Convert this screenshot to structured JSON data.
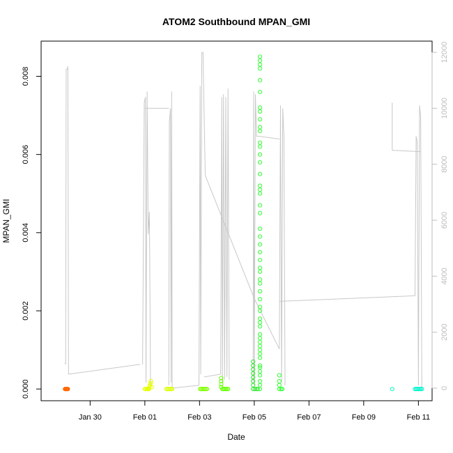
{
  "chart_data": {
    "type": "scatter",
    "title": "ATOM2 Southbound MPAN_GMI",
    "xlabel": "Date",
    "ylabel": "MPAN_GMI",
    "xlim": [
      "2022-01-28T05:00",
      "2022-02-11T12:00"
    ],
    "ylim": [
      -0.0003,
      0.0089
    ],
    "y2lim": [
      -450,
      12400
    ],
    "x_ticks": [
      {
        "date": "2022-01-30",
        "label": "Jan 30"
      },
      {
        "date": "2022-02-01",
        "label": "Feb 01"
      },
      {
        "date": "2022-02-03",
        "label": "Feb 03"
      },
      {
        "date": "2022-02-05",
        "label": "Feb 05"
      },
      {
        "date": "2022-02-07",
        "label": "Feb 07"
      },
      {
        "date": "2022-02-09",
        "label": "Feb 09"
      },
      {
        "date": "2022-02-11",
        "label": "Feb 11"
      }
    ],
    "y_ticks": [
      0,
      0.002,
      0.004,
      0.006,
      0.008
    ],
    "y_tick_labels": [
      "0.000",
      "0.002",
      "0.004",
      "0.006",
      "0.008"
    ],
    "y2_ticks": [
      0,
      2000,
      4000,
      6000,
      8000,
      10000,
      12000
    ],
    "y2_tick_labels": [
      "0",
      "2000",
      "4000",
      "6000",
      "8000",
      "10000",
      "12000"
    ],
    "line_color": "#c8c8c8",
    "y2_tick_color": "#bdbdbd",
    "point_series": [
      {
        "color": "#ff6600",
        "points": [
          [
            "2022-01-29T02:00",
            0
          ],
          [
            "2022-01-29T02:30",
            0
          ],
          [
            "2022-01-29T03:00",
            0
          ],
          [
            "2022-01-29T03:30",
            0
          ],
          [
            "2022-01-29T04:00",
            0
          ],
          [
            "2022-01-29T04:30",
            0
          ]
        ]
      },
      {
        "color": "#e6ff00",
        "points": [
          [
            "2022-02-01T00:00",
            0
          ],
          [
            "2022-02-01T01:00",
            0
          ],
          [
            "2022-02-01T02:00",
            0
          ],
          [
            "2022-02-01T02:30",
            0
          ],
          [
            "2022-02-01T03:00",
            0
          ],
          [
            "2022-02-01T03:30",
            0
          ],
          [
            "2022-02-01T04:00",
            5e-05
          ],
          [
            "2022-02-01T04:30",
            0.0001
          ],
          [
            "2022-02-01T05:00",
            0.00015
          ],
          [
            "2022-02-01T05:30",
            0.0002
          ],
          [
            "2022-02-01T06:00",
            5e-05
          ]
        ]
      },
      {
        "color": "#d9ff00",
        "points": [
          [
            "2022-02-01T19:00",
            0
          ],
          [
            "2022-02-01T20:00",
            0
          ],
          [
            "2022-02-01T21:00",
            0
          ],
          [
            "2022-02-01T22:00",
            0
          ],
          [
            "2022-02-01T23:00",
            0
          ],
          [
            "2022-02-02T00:00",
            0
          ]
        ]
      },
      {
        "color": "#80ff00",
        "points": [
          [
            "2022-02-03T00:30",
            0
          ],
          [
            "2022-02-03T01:30",
            0
          ],
          [
            "2022-02-03T02:30",
            0
          ],
          [
            "2022-02-03T03:30",
            0
          ],
          [
            "2022-02-03T04:30",
            0
          ],
          [
            "2022-02-03T05:30",
            0
          ],
          [
            "2022-02-03T06:30",
            0
          ]
        ]
      },
      {
        "color": "#66ff00",
        "points": [
          [
            "2022-02-03T19:00",
            0.00028
          ],
          [
            "2022-02-03T19:00",
            0.0002
          ],
          [
            "2022-02-03T19:00",
            0.00012
          ],
          [
            "2022-02-03T19:00",
            5e-05
          ],
          [
            "2022-02-03T20:00",
            0
          ],
          [
            "2022-02-03T21:00",
            0
          ],
          [
            "2022-02-03T22:00",
            0
          ],
          [
            "2022-02-03T23:00",
            0
          ],
          [
            "2022-02-04T00:00",
            0
          ],
          [
            "2022-02-04T01:00",
            0
          ]
        ]
      },
      {
        "color": "#2ce62c",
        "points": [
          [
            "2022-02-04T23:00",
            0
          ],
          [
            "2022-02-04T23:00",
            0.0001
          ],
          [
            "2022-02-04T23:00",
            0.0002
          ],
          [
            "2022-02-04T23:00",
            0.0003
          ],
          [
            "2022-02-04T23:00",
            0.0004
          ],
          [
            "2022-02-04T23:00",
            0.0005
          ],
          [
            "2022-02-04T23:00",
            0.0006
          ],
          [
            "2022-02-04T23:00",
            0.0007
          ],
          [
            "2022-02-05T00:30",
            0
          ],
          [
            "2022-02-05T02:00",
            0
          ],
          [
            "2022-02-05T03:00",
            0
          ]
        ]
      },
      {
        "color": "#33ff33",
        "points": [
          [
            "2022-02-05T05:00",
            0
          ],
          [
            "2022-02-05T05:00",
            0.0001
          ],
          [
            "2022-02-05T05:00",
            0.0002
          ],
          [
            "2022-02-05T05:00",
            0.00035
          ],
          [
            "2022-02-05T05:00",
            0.00045
          ],
          [
            "2022-02-05T05:00",
            0.00055
          ],
          [
            "2022-02-05T05:00",
            0.0006
          ],
          [
            "2022-02-05T05:00",
            0.0008
          ],
          [
            "2022-02-05T05:00",
            0.0009
          ],
          [
            "2022-02-05T05:00",
            0.001
          ],
          [
            "2022-02-05T05:00",
            0.0011
          ],
          [
            "2022-02-05T05:00",
            0.0012
          ],
          [
            "2022-02-05T05:00",
            0.0013
          ],
          [
            "2022-02-05T05:00",
            0.0014
          ],
          [
            "2022-02-05T05:00",
            0.0016
          ],
          [
            "2022-02-05T05:00",
            0.0017
          ],
          [
            "2022-02-05T05:00",
            0.0018
          ],
          [
            "2022-02-05T05:00",
            0.002
          ],
          [
            "2022-02-05T05:00",
            0.0021
          ],
          [
            "2022-02-05T05:00",
            0.0023
          ],
          [
            "2022-02-05T05:00",
            0.0025
          ],
          [
            "2022-02-05T05:00",
            0.0027
          ],
          [
            "2022-02-05T05:00",
            0.0028
          ],
          [
            "2022-02-05T05:00",
            0.003
          ],
          [
            "2022-02-05T05:00",
            0.0031
          ],
          [
            "2022-02-05T05:00",
            0.0033
          ],
          [
            "2022-02-05T05:00",
            0.0035
          ],
          [
            "2022-02-05T05:00",
            0.0037
          ],
          [
            "2022-02-05T05:00",
            0.0039
          ],
          [
            "2022-02-05T05:00",
            0.0041
          ],
          [
            "2022-02-05T05:00",
            0.0045
          ],
          [
            "2022-02-05T05:00",
            0.0047
          ],
          [
            "2022-02-05T05:00",
            0.005
          ],
          [
            "2022-02-05T05:00",
            0.0051
          ],
          [
            "2022-02-05T05:00",
            0.0052
          ],
          [
            "2022-02-05T05:00",
            0.0055
          ],
          [
            "2022-02-05T05:00",
            0.0058
          ],
          [
            "2022-02-05T05:00",
            0.006
          ],
          [
            "2022-02-05T05:00",
            0.0062
          ],
          [
            "2022-02-05T05:00",
            0.0063
          ],
          [
            "2022-02-05T05:00",
            0.0066
          ],
          [
            "2022-02-05T05:00",
            0.0067
          ],
          [
            "2022-02-05T05:00",
            0.0069
          ],
          [
            "2022-02-05T05:00",
            0.0071
          ],
          [
            "2022-02-05T05:00",
            0.0072
          ],
          [
            "2022-02-05T05:00",
            0.0076
          ],
          [
            "2022-02-05T05:00",
            0.0079
          ],
          [
            "2022-02-05T05:00",
            0.0082
          ],
          [
            "2022-02-05T05:00",
            0.0083
          ],
          [
            "2022-02-05T05:00",
            0.0084
          ],
          [
            "2022-02-05T05:00",
            0.0085
          ]
        ]
      },
      {
        "color": "#2eff2e",
        "points": [
          [
            "2022-02-05T22:00",
            0
          ],
          [
            "2022-02-05T22:00",
            0.0001
          ],
          [
            "2022-02-05T22:00",
            0.0002
          ],
          [
            "2022-02-05T22:00",
            0.00035
          ],
          [
            "2022-02-05T23:30",
            0
          ],
          [
            "2022-02-06T00:30",
            0
          ]
        ]
      },
      {
        "color": "#00ffbb",
        "points": [
          [
            "2022-02-10T01:00",
            0
          ]
        ]
      },
      {
        "color": "#00f2cc",
        "points": [
          [
            "2022-02-10T21:00",
            0
          ],
          [
            "2022-02-10T22:00",
            0
          ],
          [
            "2022-02-10T23:00",
            0
          ],
          [
            "2022-02-11T00:00",
            0
          ],
          [
            "2022-02-11T01:00",
            0
          ],
          [
            "2022-02-11T02:00",
            0
          ],
          [
            "2022-02-11T03:00",
            0
          ]
        ]
      }
    ],
    "line_segments": [
      [
        [
          "2022-01-29T02:00",
          900
        ],
        [
          "2022-01-29T02:30",
          850
        ],
        [
          "2022-01-29T03:00",
          11400
        ],
        [
          "2022-01-29T04:00",
          11400
        ],
        [
          "2022-01-29T04:30",
          11500
        ],
        [
          "2022-01-29T05:00",
          500
        ]
      ],
      [
        [
          "2022-01-29T05:00",
          500
        ],
        [
          "2022-01-31T20:00",
          850
        ]
      ],
      [
        [
          "2022-01-31T22:00",
          850
        ],
        [
          "2022-01-31T23:30",
          10200
        ],
        [
          "2022-02-01T00:30",
          10400
        ],
        [
          "2022-02-01T01:00",
          200
        ],
        [
          "2022-02-01T02:00",
          10600
        ],
        [
          "2022-02-01T03:00",
          5500
        ],
        [
          "2022-02-01T04:00",
          6300
        ],
        [
          "2022-02-01T05:00",
          100
        ]
      ],
      [
        [
          "2022-02-01T00:00",
          10000
        ],
        [
          "2022-02-01T21:00",
          10000
        ]
      ],
      [
        [
          "2022-02-01T21:00",
          100
        ],
        [
          "2022-02-01T21:30",
          9500
        ],
        [
          "2022-02-01T22:30",
          10000
        ],
        [
          "2022-02-01T23:00",
          200
        ],
        [
          "2022-02-01T23:30",
          10600
        ],
        [
          "2022-02-02T00:00",
          0
        ]
      ],
      [
        [
          "2022-02-02T00:00",
          0
        ],
        [
          "2022-02-02T23:30",
          100
        ]
      ],
      [
        [
          "2022-02-02T23:30",
          100
        ],
        [
          "2022-02-03T00:30",
          10800
        ],
        [
          "2022-02-03T01:00",
          500
        ],
        [
          "2022-02-03T02:00",
          12000
        ],
        [
          "2022-02-03T03:00",
          12000
        ],
        [
          "2022-02-03T05:00",
          7600
        ]
      ],
      [
        [
          "2022-02-03T05:00",
          7600
        ],
        [
          "2022-02-05T00:00",
          3200
        ]
      ],
      [
        [
          "2022-02-03T04:00",
          400
        ],
        [
          "2022-02-03T18:30",
          500
        ]
      ],
      [
        [
          "2022-02-03T18:30",
          500
        ],
        [
          "2022-02-03T19:30",
          10400
        ],
        [
          "2022-02-03T20:00",
          200
        ],
        [
          "2022-02-03T21:00",
          10500
        ],
        [
          "2022-02-03T22:00",
          300
        ],
        [
          "2022-02-03T23:00",
          10400
        ],
        [
          "2022-02-04T00:00",
          400
        ],
        [
          "2022-02-04T01:00",
          10700
        ],
        [
          "2022-02-04T02:00",
          300
        ]
      ],
      [
        [
          "2022-02-04T23:00",
          200
        ],
        [
          "2022-02-04T23:30",
          10600
        ],
        [
          "2022-02-05T00:00",
          100
        ],
        [
          "2022-02-05T01:00",
          10500
        ],
        [
          "2022-02-05T02:00",
          9000
        ],
        [
          "2022-02-05T04:00",
          9000
        ]
      ],
      [
        [
          "2022-02-05T04:00",
          9000
        ],
        [
          "2022-02-05T22:00",
          8900
        ]
      ],
      [
        [
          "2022-02-05T00:00",
          3200
        ],
        [
          "2022-02-05T22:00",
          1400
        ]
      ],
      [
        [
          "2022-02-05T22:00",
          1400
        ],
        [
          "2022-02-05T23:00",
          10100
        ],
        [
          "2022-02-06T00:00",
          200
        ],
        [
          "2022-02-06T01:00",
          10000
        ],
        [
          "2022-02-06T02:00",
          9000
        ],
        [
          "2022-02-06T03:00",
          100
        ]
      ],
      [
        [
          "2022-02-05T22:00",
          3100
        ],
        [
          "2022-02-10T21:00",
          3300
        ]
      ],
      [
        [
          "2022-02-10T01:00",
          10200
        ],
        [
          "2022-02-10T01:00",
          8500
        ],
        [
          "2022-02-11T02:00",
          8450
        ]
      ],
      [
        [
          "2022-02-10T21:00",
          3300
        ],
        [
          "2022-02-10T22:00",
          9000
        ],
        [
          "2022-02-10T23:00",
          8800
        ],
        [
          "2022-02-11T00:00",
          100
        ],
        [
          "2022-02-11T01:00",
          10100
        ],
        [
          "2022-02-11T02:00",
          9700
        ],
        [
          "2022-02-11T03:00",
          0
        ]
      ]
    ]
  }
}
